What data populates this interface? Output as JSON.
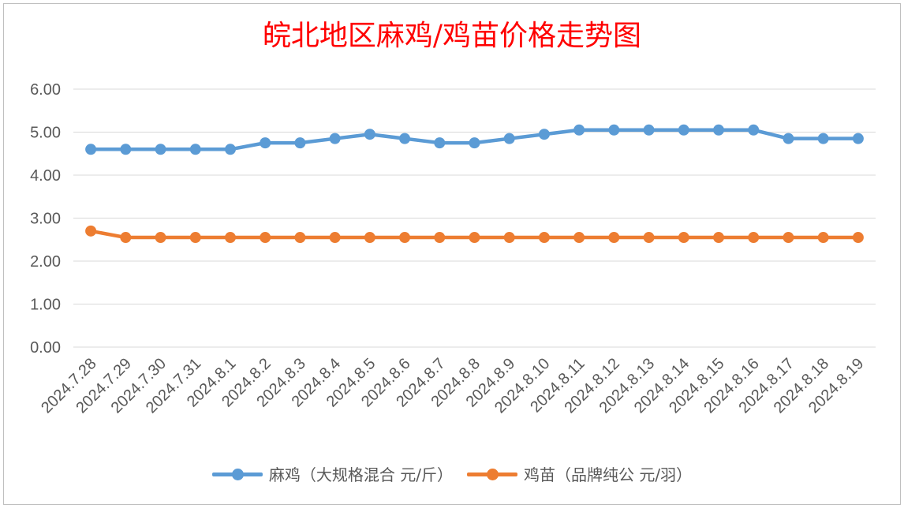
{
  "chart_data": {
    "type": "line",
    "title": "皖北地区麻鸡/鸡苗价格走势图",
    "xlabel": "",
    "ylabel": "",
    "ylim": [
      0,
      6
    ],
    "yticks": [
      "0.00",
      "1.00",
      "2.00",
      "3.00",
      "4.00",
      "5.00",
      "6.00"
    ],
    "grid": true,
    "legend_position": "bottom",
    "categories": [
      "2024.7.28",
      "2024.7.29",
      "2024.7.30",
      "2024.7.31",
      "2024.8.1",
      "2024.8.2",
      "2024.8.3",
      "2024.8.4",
      "2024.8.5",
      "2024.8.6",
      "2024.8.7",
      "2024.8.8",
      "2024.8.9",
      "2024.8.10",
      "2024.8.11",
      "2024.8.12",
      "2024.8.13",
      "2024.8.14",
      "2024.8.15",
      "2024.8.16",
      "2024.8.17",
      "2024.8.18",
      "2024.8.19"
    ],
    "series": [
      {
        "name": "麻鸡（大规格混合 元/斤）",
        "color": "#5b9bd5",
        "values": [
          4.6,
          4.6,
          4.6,
          4.6,
          4.6,
          4.75,
          4.75,
          4.85,
          4.95,
          4.85,
          4.75,
          4.75,
          4.85,
          4.95,
          5.05,
          5.05,
          5.05,
          5.05,
          5.05,
          5.05,
          4.85,
          4.85,
          4.85
        ]
      },
      {
        "name": "鸡苗（品牌纯公 元/羽）",
        "color": "#ed7d31",
        "values": [
          2.7,
          2.55,
          2.55,
          2.55,
          2.55,
          2.55,
          2.55,
          2.55,
          2.55,
          2.55,
          2.55,
          2.55,
          2.55,
          2.55,
          2.55,
          2.55,
          2.55,
          2.55,
          2.55,
          2.55,
          2.55,
          2.55,
          2.55
        ]
      }
    ]
  }
}
